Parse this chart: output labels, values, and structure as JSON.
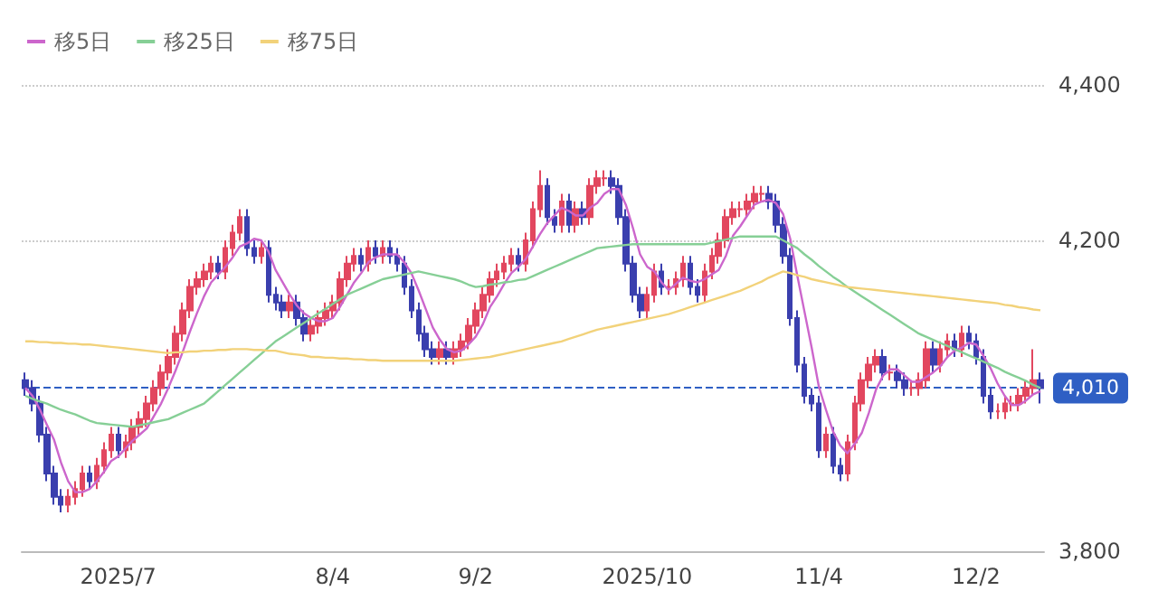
{
  "chart_data": {
    "type": "candlestick",
    "categories": [
      null,
      null,
      null,
      null,
      null,
      null,
      null,
      null,
      null,
      null,
      null,
      null,
      null,
      "2025/7",
      null,
      null,
      null,
      null,
      null,
      null,
      null,
      null,
      null,
      null,
      null,
      null,
      null,
      null,
      null,
      null,
      null,
      null,
      null,
      null,
      null,
      null,
      null,
      null,
      null,
      null,
      null,
      null,
      null,
      "8/4",
      null,
      null,
      null,
      null,
      null,
      null,
      null,
      null,
      null,
      null,
      null,
      null,
      null,
      null,
      null,
      null,
      null,
      null,
      null,
      "9/2",
      null,
      null,
      null,
      null,
      null,
      null,
      null,
      null,
      null,
      null,
      null,
      null,
      null,
      null,
      null,
      null,
      null,
      null,
      null,
      null,
      null,
      null,
      null,
      "2025/10",
      null,
      null,
      null,
      null,
      null,
      null,
      null,
      null,
      null,
      null,
      null,
      null,
      null,
      null,
      null,
      null,
      null,
      null,
      null,
      null,
      null,
      null,
      null,
      "11/4",
      null,
      null,
      null,
      null,
      null,
      null,
      null,
      null,
      null,
      null,
      null,
      null,
      null,
      null,
      null,
      null,
      null,
      null,
      null,
      null,
      null,
      "12/2",
      null,
      null,
      null,
      null,
      null,
      null,
      null,
      null,
      null
    ],
    "ohlc": [
      [
        4020,
        4030,
        4000,
        4010
      ],
      [
        4010,
        4020,
        3980,
        3990
      ],
      [
        3990,
        4000,
        3940,
        3950
      ],
      [
        3950,
        3960,
        3890,
        3900
      ],
      [
        3900,
        3910,
        3860,
        3870
      ],
      [
        3870,
        3880,
        3850,
        3860
      ],
      [
        3860,
        3880,
        3850,
        3870
      ],
      [
        3870,
        3890,
        3860,
        3880
      ],
      [
        3880,
        3910,
        3870,
        3900
      ],
      [
        3900,
        3910,
        3880,
        3890
      ],
      [
        3890,
        3920,
        3880,
        3910
      ],
      [
        3910,
        3940,
        3900,
        3930
      ],
      [
        3930,
        3960,
        3920,
        3950
      ],
      [
        3950,
        3960,
        3920,
        3930
      ],
      [
        3930,
        3950,
        3920,
        3940
      ],
      [
        3940,
        3970,
        3930,
        3960
      ],
      [
        3960,
        3980,
        3950,
        3970
      ],
      [
        3970,
        4000,
        3960,
        3990
      ],
      [
        3990,
        4020,
        3980,
        4010
      ],
      [
        4010,
        4040,
        4000,
        4030
      ],
      [
        4030,
        4060,
        4020,
        4050
      ],
      [
        4050,
        4090,
        4040,
        4080
      ],
      [
        4080,
        4120,
        4070,
        4110
      ],
      [
        4110,
        4150,
        4100,
        4140
      ],
      [
        4140,
        4160,
        4130,
        4150
      ],
      [
        4150,
        4170,
        4140,
        4160
      ],
      [
        4160,
        4180,
        4150,
        4170
      ],
      [
        4170,
        4180,
        4150,
        4160
      ],
      [
        4160,
        4200,
        4150,
        4190
      ],
      [
        4190,
        4220,
        4180,
        4210
      ],
      [
        4210,
        4240,
        4200,
        4230
      ],
      [
        4230,
        4240,
        4180,
        4190
      ],
      [
        4190,
        4200,
        4170,
        4180
      ],
      [
        4180,
        4200,
        4170,
        4190
      ],
      [
        4190,
        4200,
        4120,
        4130
      ],
      [
        4130,
        4140,
        4110,
        4120
      ],
      [
        4120,
        4130,
        4100,
        4110
      ],
      [
        4110,
        4130,
        4100,
        4120
      ],
      [
        4120,
        4130,
        4090,
        4100
      ],
      [
        4100,
        4110,
        4070,
        4080
      ],
      [
        4080,
        4100,
        4070,
        4090
      ],
      [
        4090,
        4110,
        4080,
        4100
      ],
      [
        4100,
        4120,
        4090,
        4110
      ],
      [
        4110,
        4130,
        4100,
        4120
      ],
      [
        4120,
        4160,
        4110,
        4150
      ],
      [
        4150,
        4180,
        4140,
        4170
      ],
      [
        4170,
        4190,
        4160,
        4180
      ],
      [
        4180,
        4190,
        4160,
        4170
      ],
      [
        4170,
        4200,
        4160,
        4190
      ],
      [
        4190,
        4200,
        4170,
        4180
      ],
      [
        4180,
        4200,
        4170,
        4190
      ],
      [
        4190,
        4200,
        4170,
        4180
      ],
      [
        4180,
        4190,
        4160,
        4170
      ],
      [
        4170,
        4180,
        4130,
        4140
      ],
      [
        4140,
        4150,
        4100,
        4110
      ],
      [
        4110,
        4120,
        4070,
        4080
      ],
      [
        4080,
        4090,
        4050,
        4060
      ],
      [
        4060,
        4070,
        4040,
        4050
      ],
      [
        4050,
        4070,
        4040,
        4060
      ],
      [
        4060,
        4070,
        4040,
        4050
      ],
      [
        4050,
        4070,
        4040,
        4060
      ],
      [
        4060,
        4080,
        4050,
        4070
      ],
      [
        4070,
        4100,
        4060,
        4090
      ],
      [
        4090,
        4120,
        4080,
        4110
      ],
      [
        4110,
        4140,
        4100,
        4130
      ],
      [
        4130,
        4160,
        4120,
        4150
      ],
      [
        4150,
        4170,
        4140,
        4160
      ],
      [
        4160,
        4180,
        4150,
        4170
      ],
      [
        4170,
        4190,
        4160,
        4180
      ],
      [
        4180,
        4190,
        4160,
        4170
      ],
      [
        4170,
        4210,
        4160,
        4200
      ],
      [
        4200,
        4250,
        4190,
        4240
      ],
      [
        4240,
        4290,
        4230,
        4270
      ],
      [
        4270,
        4280,
        4220,
        4230
      ],
      [
        4230,
        4240,
        4210,
        4220
      ],
      [
        4220,
        4260,
        4210,
        4250
      ],
      [
        4250,
        4260,
        4210,
        4220
      ],
      [
        4220,
        4250,
        4210,
        4240
      ],
      [
        4240,
        4250,
        4220,
        4230
      ],
      [
        4230,
        4280,
        4220,
        4270
      ],
      [
        4270,
        4290,
        4260,
        4280
      ],
      [
        4280,
        4290,
        4270,
        4280
      ],
      [
        4280,
        4290,
        4260,
        4270
      ],
      [
        4270,
        4280,
        4220,
        4230
      ],
      [
        4230,
        4240,
        4160,
        4170
      ],
      [
        4170,
        4180,
        4120,
        4130
      ],
      [
        4130,
        4140,
        4100,
        4110
      ],
      [
        4110,
        4140,
        4100,
        4130
      ],
      [
        4130,
        4170,
        4120,
        4160
      ],
      [
        4160,
        4170,
        4130,
        4140
      ],
      [
        4140,
        4150,
        4130,
        4140
      ],
      [
        4140,
        4160,
        4130,
        4150
      ],
      [
        4150,
        4180,
        4140,
        4170
      ],
      [
        4170,
        4180,
        4130,
        4140
      ],
      [
        4140,
        4150,
        4120,
        4130
      ],
      [
        4130,
        4170,
        4120,
        4160
      ],
      [
        4160,
        4190,
        4150,
        4180
      ],
      [
        4180,
        4210,
        4170,
        4200
      ],
      [
        4200,
        4240,
        4190,
        4230
      ],
      [
        4230,
        4250,
        4220,
        4240
      ],
      [
        4240,
        4250,
        4230,
        4240
      ],
      [
        4240,
        4260,
        4230,
        4250
      ],
      [
        4250,
        4270,
        4240,
        4260
      ],
      [
        4260,
        4270,
        4250,
        4260
      ],
      [
        4260,
        4270,
        4240,
        4250
      ],
      [
        4250,
        4260,
        4210,
        4220
      ],
      [
        4220,
        4230,
        4170,
        4180
      ],
      [
        4180,
        4190,
        4090,
        4100
      ],
      [
        4100,
        4110,
        4030,
        4040
      ],
      [
        4040,
        4050,
        3990,
        4000
      ],
      [
        4000,
        4010,
        3980,
        3990
      ],
      [
        3990,
        4000,
        3920,
        3930
      ],
      [
        3930,
        3960,
        3920,
        3950
      ],
      [
        3950,
        3960,
        3900,
        3910
      ],
      [
        3910,
        3920,
        3890,
        3900
      ],
      [
        3900,
        3950,
        3890,
        3940
      ],
      [
        3940,
        4000,
        3930,
        3990
      ],
      [
        3990,
        4030,
        3980,
        4020
      ],
      [
        4020,
        4050,
        4010,
        4040
      ],
      [
        4040,
        4060,
        4030,
        4050
      ],
      [
        4050,
        4060,
        4020,
        4030
      ],
      [
        4030,
        4040,
        4020,
        4030
      ],
      [
        4030,
        4040,
        4010,
        4020
      ],
      [
        4020,
        4030,
        4000,
        4010
      ],
      [
        4010,
        4020,
        4000,
        4010
      ],
      [
        4010,
        4030,
        4000,
        4020
      ],
      [
        4020,
        4070,
        4010,
        4060
      ],
      [
        4060,
        4070,
        4030,
        4040
      ],
      [
        4040,
        4070,
        4030,
        4060
      ],
      [
        4060,
        4080,
        4050,
        4070
      ],
      [
        4070,
        4080,
        4050,
        4060
      ],
      [
        4060,
        4090,
        4050,
        4080
      ],
      [
        4080,
        4090,
        4060,
        4070
      ],
      [
        4070,
        4080,
        4040,
        4050
      ],
      [
        4050,
        4060,
        3990,
        4000
      ],
      [
        4000,
        4010,
        3970,
        3980
      ],
      [
        3980,
        3990,
        3970,
        3980
      ],
      [
        3980,
        4000,
        3970,
        3990
      ],
      [
        3990,
        4000,
        3980,
        3990
      ],
      [
        3990,
        4010,
        3980,
        4000
      ],
      [
        4000,
        4020,
        3990,
        4010
      ],
      [
        4010,
        4060,
        4000,
        4020
      ],
      [
        4020,
        4030,
        3990,
        4010
      ]
    ],
    "series": [
      {
        "type": "line",
        "name": "移5日",
        "color": "#cc66cc",
        "values": [
          4010,
          4000,
          3983,
          3963,
          3944,
          3914,
          3890,
          3876,
          3876,
          3880,
          3890,
          3902,
          3916,
          3922,
          3932,
          3942,
          3950,
          3958,
          3974,
          3990,
          4010,
          4032,
          4056,
          4082,
          4106,
          4128,
          4146,
          4156,
          4166,
          4178,
          4192,
          4196,
          4202,
          4200,
          4186,
          4162,
          4146,
          4130,
          4116,
          4106,
          4100,
          4096,
          4096,
          4100,
          4114,
          4130,
          4146,
          4158,
          4172,
          4178,
          4182,
          4182,
          4182,
          4172,
          4158,
          4136,
          4112,
          4088,
          4072,
          4060,
          4056,
          4058,
          4066,
          4076,
          4092,
          4114,
          4128,
          4144,
          4158,
          4166,
          4176,
          4192,
          4208,
          4222,
          4232,
          4242,
          4238,
          4232,
          4232,
          4242,
          4248,
          4260,
          4266,
          4266,
          4246,
          4216,
          4182,
          4166,
          4160,
          4146,
          4136,
          4144,
          4152,
          4148,
          4146,
          4150,
          4156,
          4162,
          4180,
          4206,
          4218,
          4232,
          4246,
          4250,
          4252,
          4248,
          4234,
          4202,
          4154,
          4108,
          4062,
          4012,
          3982,
          3954,
          3936,
          3926,
          3938,
          3952,
          3978,
          4008,
          4026,
          4034,
          4034,
          4026,
          4018,
          4018,
          4024,
          4030,
          4038,
          4050,
          4058,
          4062,
          4068,
          4066,
          4052,
          4036,
          4016,
          4000,
          3988,
          3988,
          3994,
          4002,
          4006
        ]
      },
      {
        "type": "line",
        "name": "移25日",
        "color": "#86cf96",
        "values": [
          4000,
          3996,
          3993,
          3990,
          3986,
          3982,
          3979,
          3976,
          3972,
          3968,
          3965,
          3964,
          3963,
          3962,
          3961,
          3960,
          3962,
          3964,
          3966,
          3968,
          3970,
          3974,
          3978,
          3982,
          3986,
          3990,
          3998,
          4006,
          4014,
          4022,
          4030,
          4038,
          4046,
          4054,
          4062,
          4070,
          4076,
          4082,
          4088,
          4094,
          4100,
          4106,
          4112,
          4118,
          4124,
          4130,
          4134,
          4138,
          4142,
          4146,
          4150,
          4152,
          4154,
          4156,
          4158,
          4160,
          4158,
          4156,
          4154,
          4152,
          4150,
          4147,
          4143,
          4140,
          4141,
          4143,
          4144,
          4146,
          4147,
          4149,
          4150,
          4154,
          4158,
          4162,
          4166,
          4170,
          4174,
          4178,
          4182,
          4186,
          4190,
          4191,
          4192,
          4193,
          4194,
          4195,
          4195,
          4195,
          4195,
          4195,
          4195,
          4195,
          4195,
          4195,
          4195,
          4195,
          4197,
          4199,
          4201,
          4203,
          4205,
          4205,
          4205,
          4205,
          4205,
          4205,
          4200,
          4195,
          4190,
          4182,
          4175,
          4167,
          4160,
          4153,
          4147,
          4140,
          4134,
          4128,
          4122,
          4116,
          4110,
          4104,
          4098,
          4092,
          4086,
          4080,
          4076,
          4072,
          4068,
          4064,
          4060,
          4056,
          4052,
          4048,
          4044,
          4040,
          4036,
          4031,
          4027,
          4023,
          4019,
          4014,
          4010
        ]
      },
      {
        "type": "line",
        "name": "移75日",
        "color": "#f2d27a",
        "values": [
          4070,
          4070,
          4069,
          4069,
          4068,
          4068,
          4067,
          4067,
          4066,
          4066,
          4065,
          4064,
          4063,
          4062,
          4061,
          4060,
          4059,
          4058,
          4057,
          4056,
          4055,
          4056,
          4056,
          4057,
          4057,
          4058,
          4058,
          4059,
          4059,
          4060,
          4060,
          4060,
          4059,
          4059,
          4058,
          4058,
          4056,
          4054,
          4053,
          4052,
          4050,
          4050,
          4049,
          4049,
          4048,
          4048,
          4047,
          4047,
          4046,
          4046,
          4045,
          4045,
          4045,
          4045,
          4045,
          4045,
          4045,
          4045,
          4045,
          4045,
          4045,
          4046,
          4047,
          4048,
          4049,
          4050,
          4052,
          4054,
          4056,
          4058,
          4060,
          4062,
          4064,
          4066,
          4068,
          4070,
          4073,
          4076,
          4079,
          4082,
          4085,
          4087,
          4089,
          4091,
          4093,
          4095,
          4097,
          4099,
          4101,
          4103,
          4105,
          4108,
          4111,
          4114,
          4117,
          4120,
          4123,
          4126,
          4129,
          4132,
          4135,
          4139,
          4143,
          4147,
          4152,
          4156,
          4160,
          4158,
          4155,
          4153,
          4150,
          4148,
          4146,
          4144,
          4142,
          4140,
          4139,
          4138,
          4137,
          4136,
          4135,
          4134,
          4133,
          4132,
          4131,
          4130,
          4129,
          4128,
          4127,
          4126,
          4125,
          4124,
          4123,
          4122,
          4121,
          4120,
          4119,
          4117,
          4116,
          4114,
          4113,
          4111,
          4110
        ]
      }
    ],
    "ylim": [
      3800,
      4400
    ],
    "yticks": [
      {
        "value": 3800,
        "label": "3,800"
      },
      {
        "value": 4200,
        "label": "4,200"
      },
      {
        "value": 4400,
        "label": "4,400"
      }
    ],
    "ref_lines": [
      {
        "axis": "y",
        "value": 4010,
        "label": "4,010",
        "color": "#2f5fc4",
        "line_style": "dashed"
      }
    ],
    "grid": "y",
    "legend": "top left",
    "marker": "none"
  }
}
